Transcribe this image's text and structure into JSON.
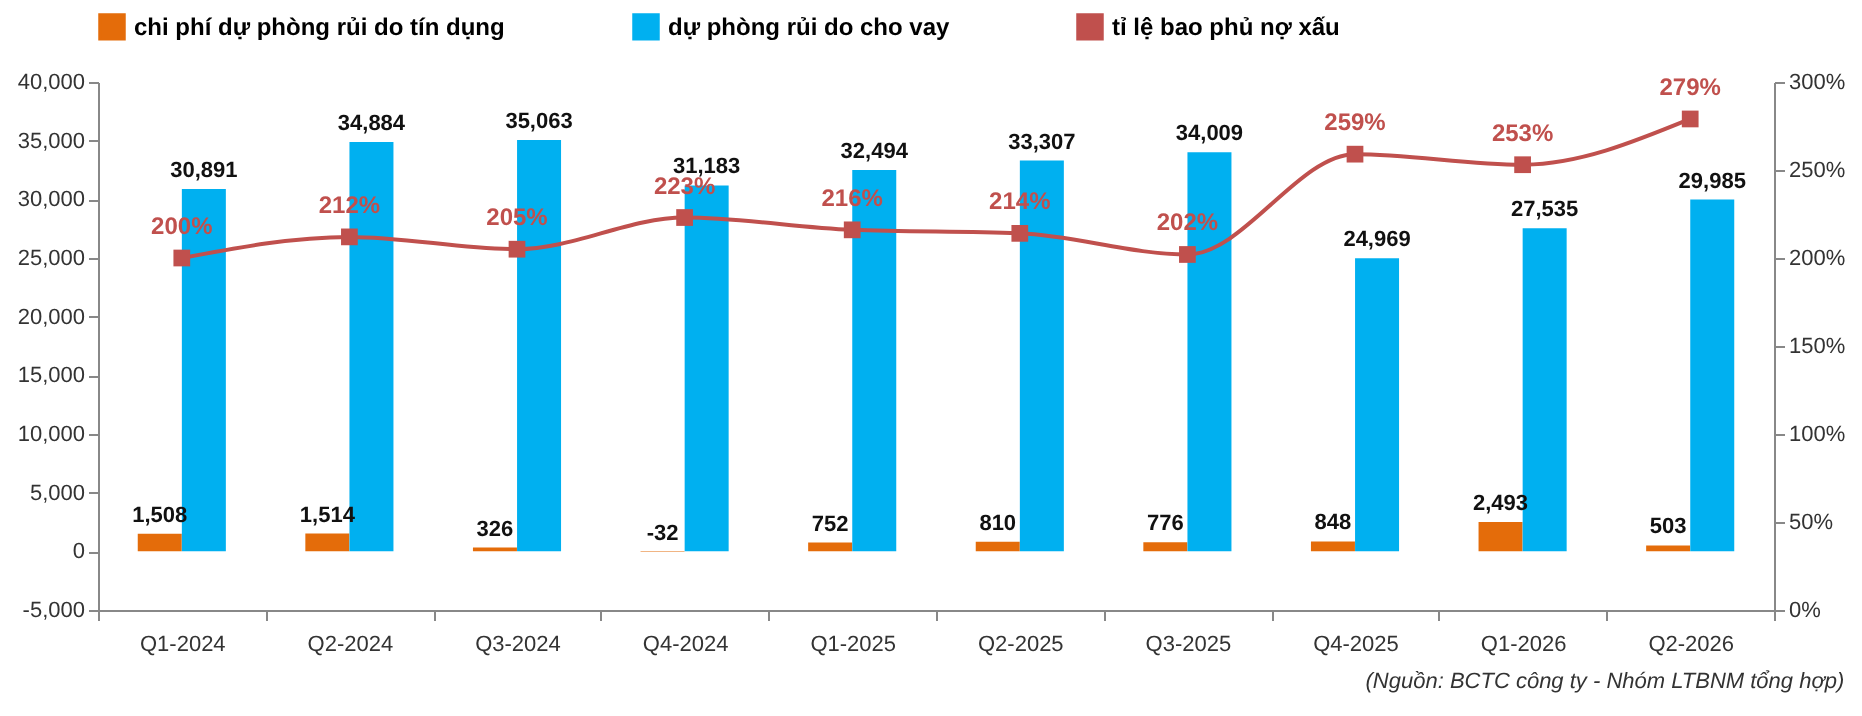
{
  "chart_data": {
    "type": "bar",
    "categories": [
      "Q1-2024",
      "Q2-2024",
      "Q3-2024",
      "Q4-2024",
      "Q1-2025",
      "Q2-2025",
      "Q3-2025",
      "Q4-2025",
      "Q1-2026",
      "Q2-2026"
    ],
    "series": [
      {
        "name": "chi phí dự phòng rủi do tín dụng",
        "color": "#e46c0a",
        "values": [
          1508,
          1514,
          326,
          -32,
          752,
          810,
          776,
          848,
          2493,
          503
        ],
        "value_labels": [
          "1,508",
          "1,514",
          "326",
          "-32",
          "752",
          "810",
          "776",
          "848",
          "2,493",
          "503"
        ]
      },
      {
        "name": "dự phòng rủi do cho vay",
        "color": "#00b0f0",
        "values": [
          30891,
          34884,
          35063,
          31183,
          32494,
          33307,
          34009,
          24969,
          27535,
          29985
        ],
        "value_labels": [
          "30,891",
          "34,884",
          "35,063",
          "31,183",
          "32,494",
          "33,307",
          "34,009",
          "24,969",
          "27,535",
          "29,985"
        ]
      },
      {
        "name": "tỉ lệ bao phủ nợ xấu",
        "type": "line",
        "axis": "y2",
        "color": "#c0504d",
        "marker": "square",
        "values": [
          200,
          212,
          205,
          223,
          216,
          214,
          202,
          259,
          253,
          279
        ],
        "value_labels": [
          "200%",
          "212%",
          "205%",
          "223%",
          "216%",
          "214%",
          "202%",
          "259%",
          "253%",
          "279%"
        ]
      }
    ],
    "ylim": [
      -5000,
      40000
    ],
    "yticks": [
      {
        "value": -5000,
        "label": "-5,000"
      },
      0,
      {
        "value": 5000,
        "label": "5,000"
      },
      {
        "value": 10000,
        "label": "10,000"
      },
      {
        "value": 15000,
        "label": "15,000"
      },
      {
        "value": 20000,
        "label": "20,000"
      },
      {
        "value": 25000,
        "label": "25,000"
      },
      {
        "value": 30000,
        "label": "30,000"
      },
      {
        "value": 35000,
        "label": "35,000"
      },
      {
        "value": 40000,
        "label": "40,000"
      }
    ],
    "y2lim": [
      0,
      300
    ],
    "y2ticks": [
      {
        "value": 0,
        "label": "0%"
      },
      {
        "value": 50,
        "label": "50%"
      },
      {
        "value": 100,
        "label": "100%"
      },
      {
        "value": 150,
        "label": "150%"
      },
      {
        "value": 200,
        "label": "200%"
      },
      {
        "value": 250,
        "label": "250%"
      },
      {
        "value": 300,
        "label": "300%"
      }
    ],
    "grid": false,
    "legend": "top",
    "annotations": [
      "(Nguồn: BCTC công ty - Nhóm LTBNM tổng hợp)"
    ]
  }
}
